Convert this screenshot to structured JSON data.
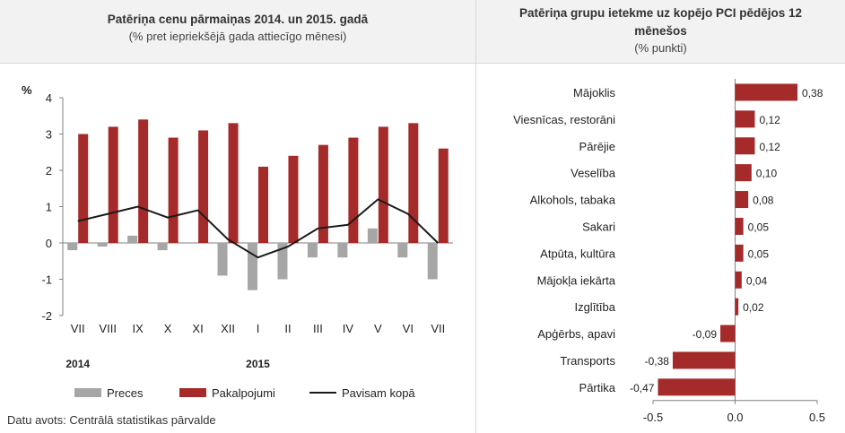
{
  "left": {
    "title": "Patēriņa cenu pārmaiņas 2014. un 2015. gadā",
    "subtitle": "(% pret iepriekšējā gada attiecīgo mēnesi)",
    "source": "Datu avots: Centrālā statistikas pārvalde"
  },
  "right": {
    "title_line1": "Patēriņa grupu ietekme uz kopējo PCI pēdējos 12",
    "title_line2": "mēnešos",
    "subtitle": "(% punkti)"
  },
  "chart_data": [
    {
      "type": "bar",
      "ylabel": "%",
      "ylim": [
        -2,
        4
      ],
      "yticks": [
        4,
        3,
        2,
        1,
        0,
        -1,
        -2
      ],
      "categories": [
        "VII",
        "VIII",
        "IX",
        "X",
        "XI",
        "XII",
        "I",
        "II",
        "III",
        "IV",
        "V",
        "VI",
        "VII"
      ],
      "year_labels": [
        {
          "label": "2014",
          "category_index": 0
        },
        {
          "label": "2015",
          "category_index": 6
        }
      ],
      "series": [
        {
          "name": "Preces",
          "kind": "bar",
          "color": "#a6a6a6",
          "values": [
            -0.2,
            -0.1,
            0.2,
            -0.2,
            0.0,
            -0.9,
            -1.3,
            -1.0,
            -0.4,
            -0.4,
            0.4,
            -0.4,
            -1.0
          ]
        },
        {
          "name": "Pakalpojumi",
          "kind": "bar",
          "color": "#a52a2a",
          "values": [
            3.0,
            3.2,
            3.4,
            2.9,
            3.1,
            3.3,
            2.1,
            2.4,
            2.7,
            2.9,
            3.2,
            3.3,
            2.6
          ]
        },
        {
          "name": "Pavisam kopā",
          "kind": "line",
          "color": "#1a1a1a",
          "values": [
            0.6,
            0.8,
            1.0,
            0.7,
            0.9,
            0.1,
            -0.4,
            -0.1,
            0.4,
            0.5,
            1.2,
            0.8,
            0.0
          ]
        }
      ],
      "legend_position": "bottom"
    },
    {
      "type": "bar",
      "orientation": "horizontal",
      "xlim": [
        -0.5,
        0.5
      ],
      "xticks": [
        "-0.5",
        "0.0",
        "0.5"
      ],
      "bar_color": "#a52a2a",
      "categories": [
        "Mājoklis",
        "Viesnīcas, restorāni",
        "Pārējie",
        "Veselība",
        "Alkohols, tabaka",
        "Sakari",
        "Atpūta, kultūra",
        "Mājokļa iekārta",
        "Izglītība",
        "Apģērbs, apavi",
        "Transports",
        "Pārtika"
      ],
      "values": [
        0.38,
        0.12,
        0.12,
        0.1,
        0.08,
        0.05,
        0.05,
        0.04,
        0.02,
        -0.09,
        -0.38,
        -0.47
      ],
      "labels": [
        "0,38",
        "0,12",
        "0,12",
        "0,10",
        "0,08",
        "0,05",
        "0,05",
        "0,04",
        "0,02",
        "-0,09",
        "-0,38",
        "-0,47"
      ]
    }
  ]
}
